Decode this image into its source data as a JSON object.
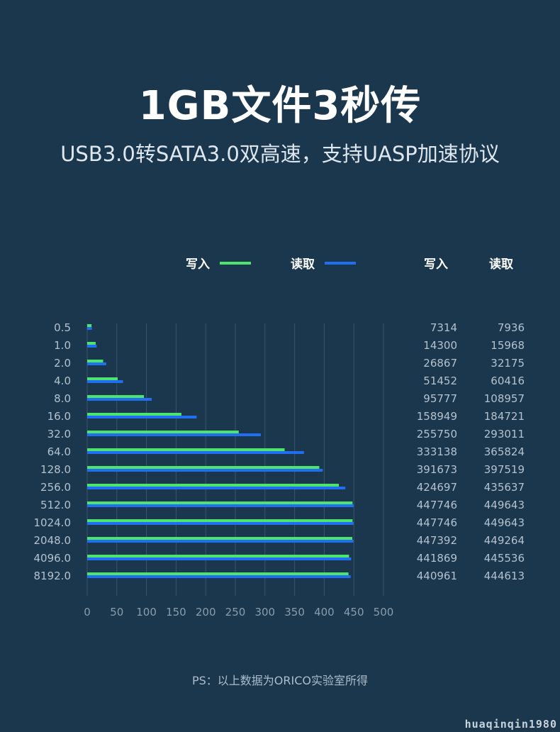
{
  "header": {
    "title": "1GB文件3秒传",
    "subtitle": "USB3.0转SATA3.0双高速，支持UASP加速协议"
  },
  "legend": {
    "write_label": "写入",
    "read_label": "读取"
  },
  "table_headers": {
    "write": "写入",
    "read": "读取"
  },
  "footnote": "PS：以上数据为ORICO实验室所得",
  "watermark": "huaqinqin1980",
  "colors": {
    "background": "#1a374e",
    "write": "#4ce46e",
    "read": "#1f6ff0",
    "grid": "#3a566b",
    "tick_text": "#8a9caa",
    "value_text": "#b4c2cd"
  },
  "chart_data": {
    "type": "bar",
    "orientation": "horizontal",
    "categories": [
      "0.5",
      "1.0",
      "2.0",
      "4.0",
      "8.0",
      "16.0",
      "32.0",
      "64.0",
      "128.0",
      "256.0",
      "512.0",
      "1024.0",
      "2048.0",
      "4096.0",
      "8192.0"
    ],
    "series": [
      {
        "name": "写入",
        "values": [
          7314,
          14300,
          26867,
          51452,
          95777,
          158949,
          255750,
          333138,
          391673,
          424697,
          447746,
          447746,
          447392,
          441869,
          440961
        ]
      },
      {
        "name": "读取",
        "values": [
          7936,
          15968,
          32175,
          60416,
          108957,
          184721,
          293011,
          365824,
          397519,
          435637,
          449643,
          449643,
          449264,
          445536,
          444613
        ]
      }
    ],
    "xticks": [
      "0",
      "50",
      "100",
      "150",
      "200",
      "250",
      "300",
      "350",
      "400",
      "450",
      "500"
    ],
    "xlim": [
      0,
      500
    ],
    "grid": true,
    "legend_position": "top"
  }
}
